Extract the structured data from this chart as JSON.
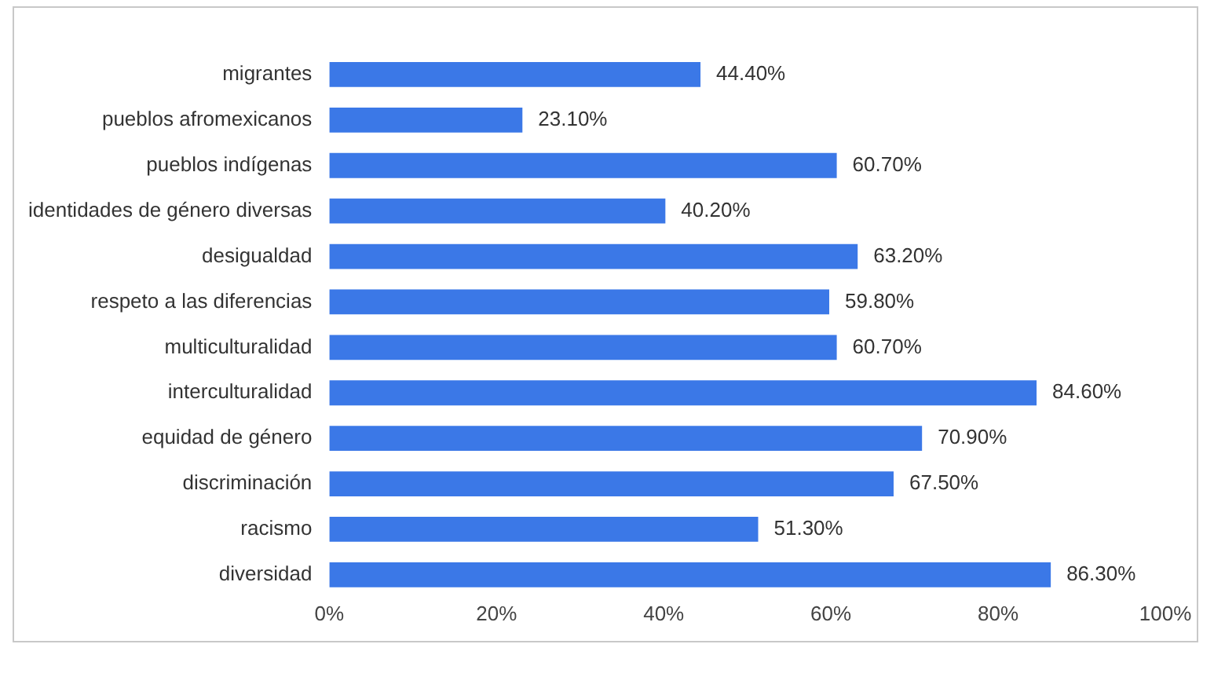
{
  "chart_data": {
    "type": "bar",
    "orientation": "horizontal",
    "categories": [
      "migrantes",
      "pueblos afromexicanos",
      "pueblos indígenas",
      "identidades de género diversas",
      "desigualdad",
      "respeto a las diferencias",
      "multiculturalidad",
      "interculturalidad",
      "equidad de género",
      "discriminación",
      "racismo",
      "diversidad"
    ],
    "values": [
      44.4,
      23.1,
      60.7,
      40.2,
      63.2,
      59.8,
      60.7,
      84.6,
      70.9,
      67.5,
      51.3,
      86.3
    ],
    "value_labels": [
      "44.40%",
      "23.10%",
      "60.70%",
      "40.20%",
      "63.20%",
      "59.80%",
      "60.70%",
      "84.60%",
      "70.90%",
      "67.50%",
      "51.30%",
      "86.30%"
    ],
    "color": "#3b78e7",
    "xlim": [
      0,
      100
    ],
    "xticks": [
      {
        "value": 0,
        "label": "0%"
      },
      {
        "value": 20,
        "label": "20%"
      },
      {
        "value": 40,
        "label": "40%"
      },
      {
        "value": 60,
        "label": "60%"
      },
      {
        "value": 80,
        "label": "80%"
      },
      {
        "value": 100,
        "label": "100%"
      }
    ],
    "grid": false,
    "legend": false
  }
}
